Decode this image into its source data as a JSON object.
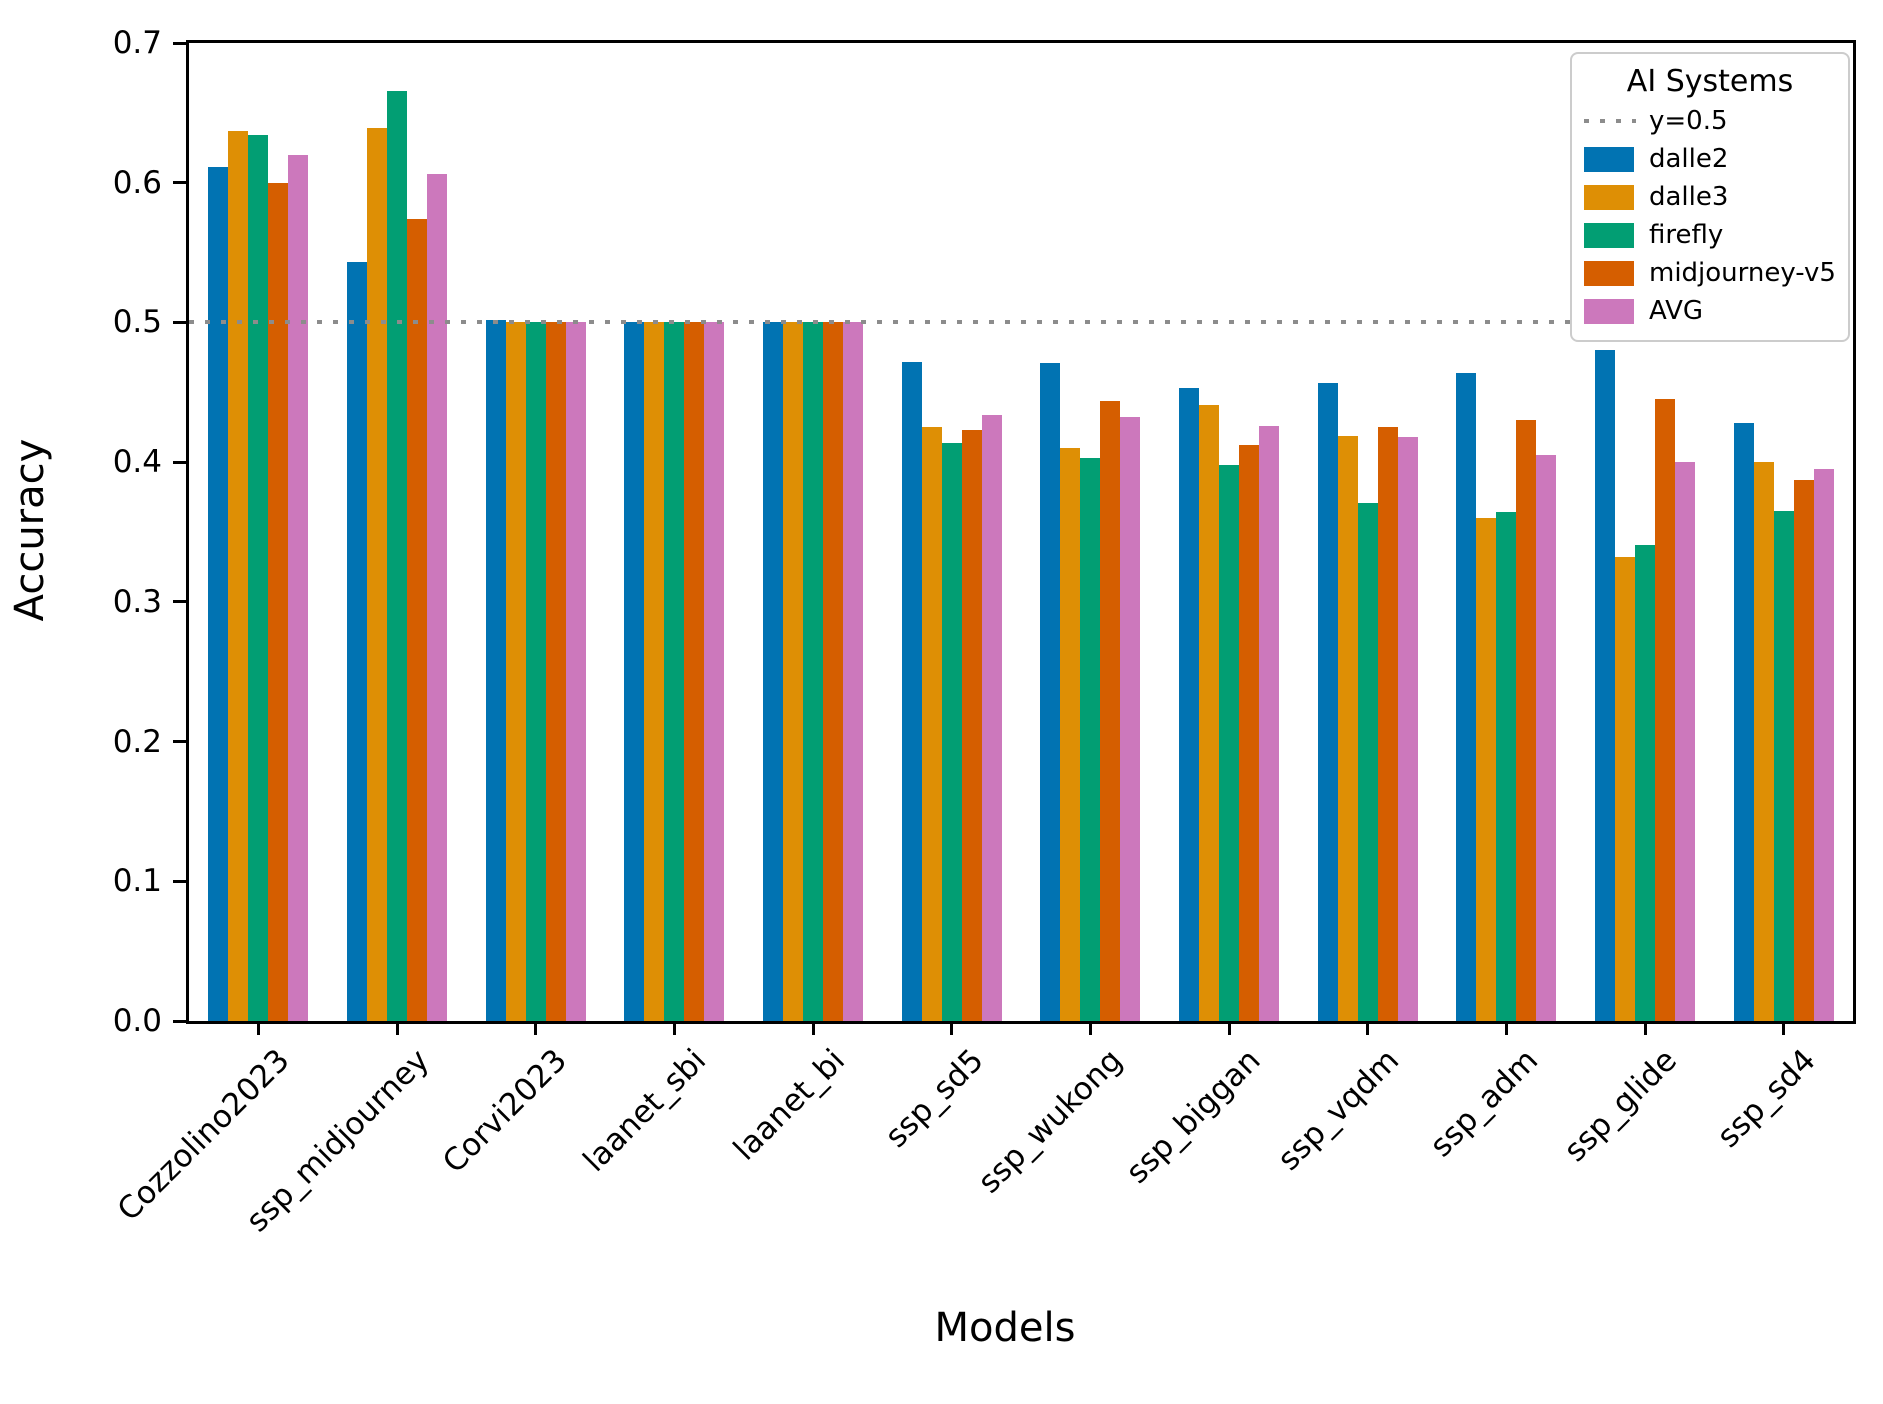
{
  "figure": {
    "ylabel": "Accuracy",
    "xlabel": "Models"
  },
  "legend": {
    "title": "AI Systems",
    "ref_label": "y=0.5"
  },
  "chart_data": {
    "type": "bar",
    "title": "",
    "xlabel": "Models",
    "ylabel": "Accuracy",
    "ylim": [
      0.0,
      0.7
    ],
    "yticks": [
      "0.0",
      "0.1",
      "0.2",
      "0.3",
      "0.4",
      "0.5",
      "0.6",
      "0.7"
    ],
    "grid": false,
    "legend_title": "AI Systems",
    "legend_position": "upper right",
    "reference_line": {
      "y": 0.5,
      "label": "y=0.5",
      "style": "dotted",
      "color": "#8c8c8c"
    },
    "categories": [
      "Cozzolino2023",
      "ssp_midjourney",
      "Corvi2023",
      "laanet_sbi",
      "laanet_bi",
      "ssp_sd5",
      "ssp_wukong",
      "ssp_biggan",
      "ssp_vqdm",
      "ssp_adm",
      "ssp_glide",
      "ssp_sd4"
    ],
    "series": [
      {
        "name": "dalle2",
        "color": "#0173B2",
        "values": [
          0.611,
          0.543,
          0.502,
          0.5,
          0.5,
          0.472,
          0.471,
          0.453,
          0.457,
          0.464,
          0.48,
          0.428
        ]
      },
      {
        "name": "dalle3",
        "color": "#DE8F05",
        "values": [
          0.637,
          0.639,
          0.5,
          0.5,
          0.5,
          0.425,
          0.41,
          0.441,
          0.419,
          0.36,
          0.332,
          0.4
        ]
      },
      {
        "name": "firefly",
        "color": "#029E73",
        "values": [
          0.634,
          0.666,
          0.5,
          0.5,
          0.5,
          0.414,
          0.403,
          0.398,
          0.371,
          0.364,
          0.341,
          0.365
        ]
      },
      {
        "name": "midjourney-v5",
        "color": "#D55E00",
        "values": [
          0.6,
          0.574,
          0.5,
          0.5,
          0.5,
          0.423,
          0.444,
          0.412,
          0.425,
          0.43,
          0.445,
          0.387
        ]
      },
      {
        "name": "AVG",
        "color": "#CC78BC",
        "values": [
          0.62,
          0.606,
          0.5,
          0.5,
          0.5,
          0.434,
          0.432,
          0.426,
          0.418,
          0.405,
          0.4,
          0.395
        ]
      }
    ]
  }
}
